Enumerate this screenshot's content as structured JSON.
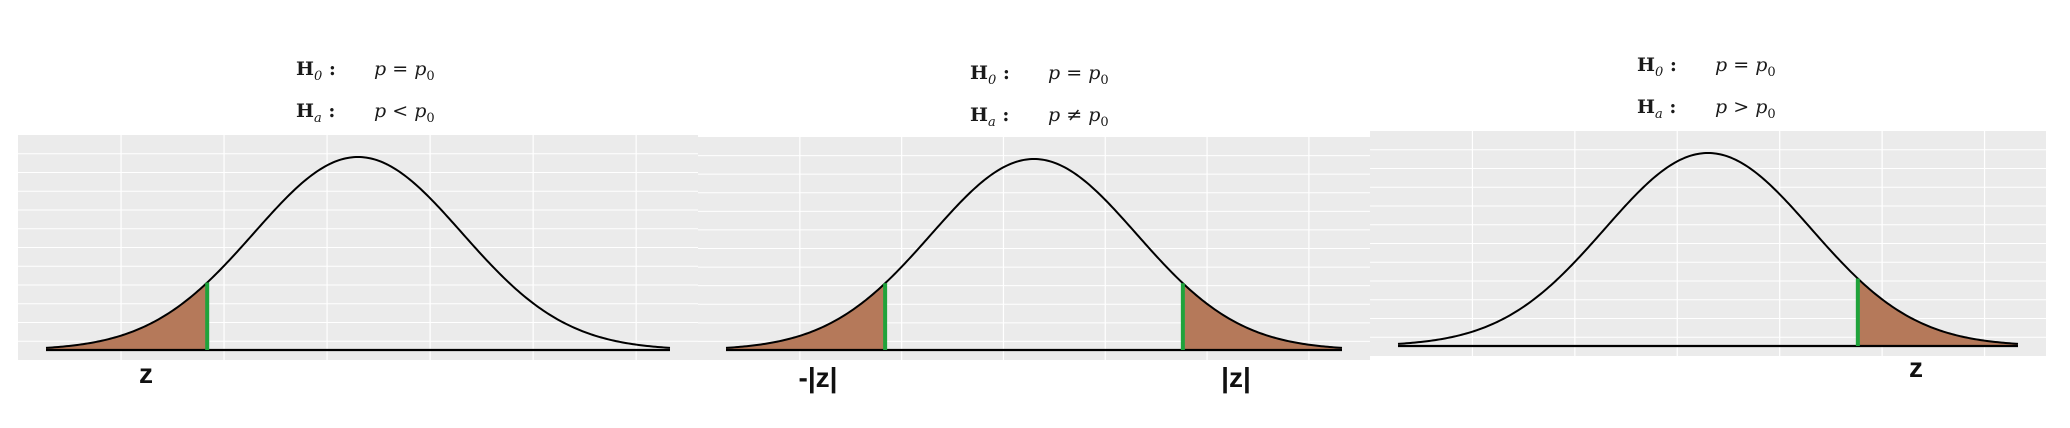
{
  "panels": [
    {
      "h0": {
        "label": "H",
        "sub": "0",
        "lhs": "p",
        "op": "=",
        "rhs": "p",
        "rhs_sub": "0"
      },
      "ha": {
        "label": "H",
        "sub": "a",
        "lhs": "p",
        "op": "<",
        "rhs": "p",
        "rhs_sub": "0"
      },
      "tail": "left",
      "z_labels": [
        "z"
      ]
    },
    {
      "h0": {
        "label": "H",
        "sub": "0",
        "lhs": "p",
        "op": "=",
        "rhs": "p",
        "rhs_sub": "0"
      },
      "ha": {
        "label": "H",
        "sub": "a",
        "lhs": "p",
        "op": "≠",
        "rhs": "p",
        "rhs_sub": "0"
      },
      "tail": "both",
      "z_labels": [
        "-|z|",
        "|z|"
      ]
    },
    {
      "h0": {
        "label": "H",
        "sub": "0",
        "lhs": "p",
        "op": "=",
        "rhs": "p",
        "rhs_sub": "0"
      },
      "ha": {
        "label": "H",
        "sub": "a",
        "lhs": "p",
        "op": ">",
        "rhs": "p",
        "rhs_sub": "0"
      },
      "tail": "right",
      "z_labels": [
        "z"
      ]
    }
  ],
  "colors": {
    "background": "#ebebeb",
    "grid": "#ffffff",
    "curve": "#000000",
    "tail_fill": "#b5795a",
    "marker": "#1fa33b"
  },
  "critical_z": 1.45
}
